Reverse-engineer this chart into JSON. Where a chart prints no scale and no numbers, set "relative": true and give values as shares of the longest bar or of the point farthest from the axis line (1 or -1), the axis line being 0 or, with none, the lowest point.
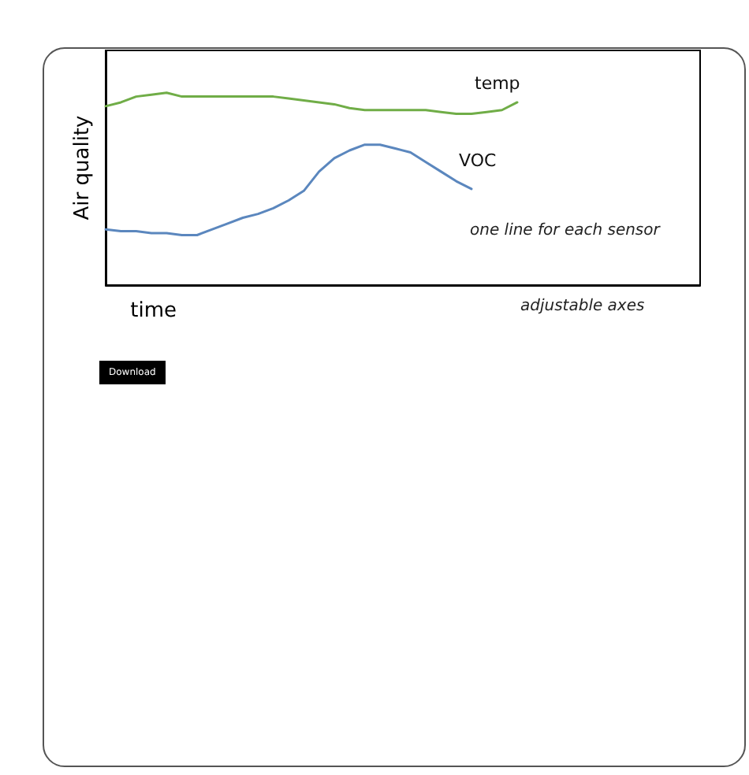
{
  "chart_data": {
    "type": "line",
    "relative": true,
    "xlabel": "time",
    "ylabel": "Air quality",
    "categories": [
      null,
      null,
      null,
      null,
      null,
      null,
      null,
      null,
      null,
      null,
      null,
      null,
      null,
      null,
      null,
      null,
      null,
      null,
      null,
      null,
      null,
      null,
      null,
      null,
      null,
      null,
      null,
      null,
      null,
      null,
      null,
      null,
      null,
      null,
      null,
      null,
      null,
      null,
      null,
      null
    ],
    "series": [
      {
        "name": "temp",
        "color": "#70ad47",
        "values": [
          0.93,
          0.95,
          0.98,
          0.99,
          1,
          0.98,
          0.98,
          0.98,
          0.98,
          0.98,
          0.98,
          0.98,
          0.97,
          0.96,
          0.95,
          0.94,
          0.92,
          0.91,
          0.91,
          0.91,
          0.91,
          0.91,
          0.9,
          0.89,
          0.89,
          0.9,
          0.91,
          0.95,
          null,
          null,
          null,
          null,
          null,
          null,
          null,
          null,
          null,
          null,
          null,
          null
        ]
      },
      {
        "name": "VOC",
        "color": "#5b87be",
        "values": [
          0.29,
          0.28,
          0.28,
          0.27,
          0.27,
          0.26,
          0.26,
          0.29,
          0.32,
          0.35,
          0.37,
          0.4,
          0.44,
          0.49,
          0.59,
          0.66,
          0.7,
          0.73,
          0.73,
          0.71,
          0.69,
          0.64,
          0.59,
          0.54,
          0.5,
          null,
          null,
          null,
          null,
          null,
          null,
          null,
          null,
          null,
          null,
          null,
          null,
          null,
          null,
          null
        ]
      }
    ],
    "annotations": [
      "one line for each sensor",
      "adjustable axes",
      "Download"
    ],
    "legend": false,
    "grid": false,
    "marker": "none",
    "line_style": "solid"
  }
}
